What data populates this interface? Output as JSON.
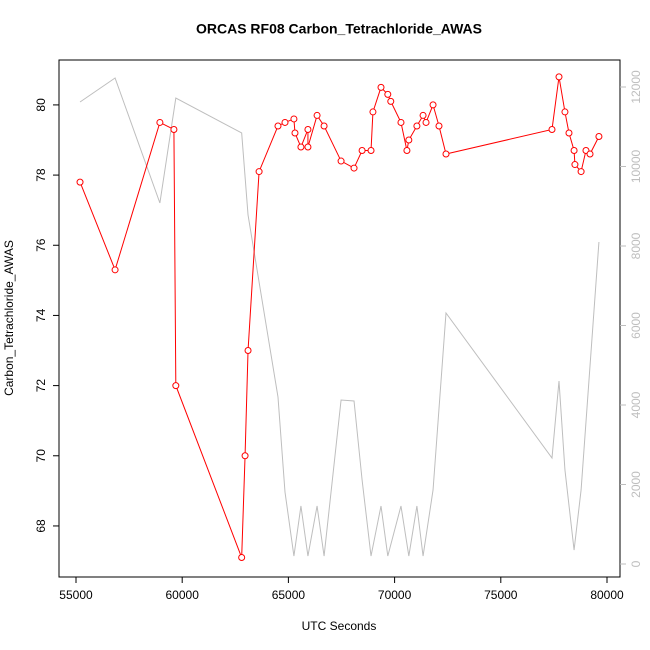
{
  "chart_data": {
    "type": "line",
    "title": "ORCAS RF08 Carbon_Tetrachloride_AWAS",
    "xlabel": "UTC Seconds",
    "ylabel": "Carbon_Tetrachloride_AWAS",
    "xlim": [
      54200,
      80612
    ],
    "ylim": [
      66.545,
      81.28
    ],
    "y2lim": [
      -327,
      12679
    ],
    "xticks": [
      55000,
      60000,
      65000,
      70000,
      75000,
      80000
    ],
    "yticks": [
      68,
      70,
      72,
      74,
      76,
      78,
      80
    ],
    "y2ticks": [
      0,
      2000,
      4000,
      6000,
      8000,
      10000,
      12000
    ],
    "series": [
      {
        "color": "#bebebe",
        "axis": "y2",
        "x": [
          55190,
          56840,
          58950,
          59700,
          62800,
          63100,
          64510,
          64840,
          65260,
          65590,
          65920,
          66350,
          66680,
          67480,
          68090,
          68470,
          68890,
          69360,
          69680,
          70300,
          70670,
          71050,
          71340,
          71810,
          72420,
          77410,
          77740,
          78020,
          78450,
          78780,
          79620
        ],
        "values": [
          11623,
          12226,
          9082,
          11723,
          10843,
          8780,
          4201,
          1811,
          201,
          1459,
          201,
          1459,
          201,
          4126,
          4101,
          2113,
          201,
          1459,
          201,
          1459,
          201,
          1459,
          201,
          1862,
          6314,
          2667,
          4604,
          2365,
          352,
          1862,
          8101
        ]
      },
      {
        "color": "#ff0000",
        "axis": "y",
        "markers": true,
        "x": [
          55190,
          56840,
          58950,
          59610,
          59700,
          62800,
          62960,
          63100,
          63620,
          64510,
          64840,
          65260,
          65310,
          65590,
          65920,
          65920,
          66350,
          66680,
          67480,
          68090,
          68470,
          68890,
          68980,
          69360,
          69680,
          69820,
          70300,
          70580,
          70670,
          71050,
          71340,
          71480,
          71810,
          72090,
          72420,
          77410,
          77740,
          78020,
          78210,
          78450,
          78490,
          78780,
          79010,
          79200,
          79620
        ],
        "values": [
          77.8,
          75.3,
          79.5,
          79.3,
          72.0,
          67.1,
          70.0,
          73.0,
          78.1,
          79.4,
          79.5,
          79.6,
          79.2,
          78.8,
          79.3,
          78.8,
          79.7,
          79.4,
          78.4,
          78.2,
          78.7,
          78.7,
          79.8,
          80.5,
          80.3,
          80.1,
          79.5,
          78.7,
          79.0,
          79.4,
          79.7,
          79.5,
          80.0,
          79.4,
          78.6,
          79.3,
          80.8,
          79.8,
          79.2,
          78.7,
          78.3,
          78.1,
          78.7,
          78.6,
          79.1
        ]
      }
    ]
  }
}
